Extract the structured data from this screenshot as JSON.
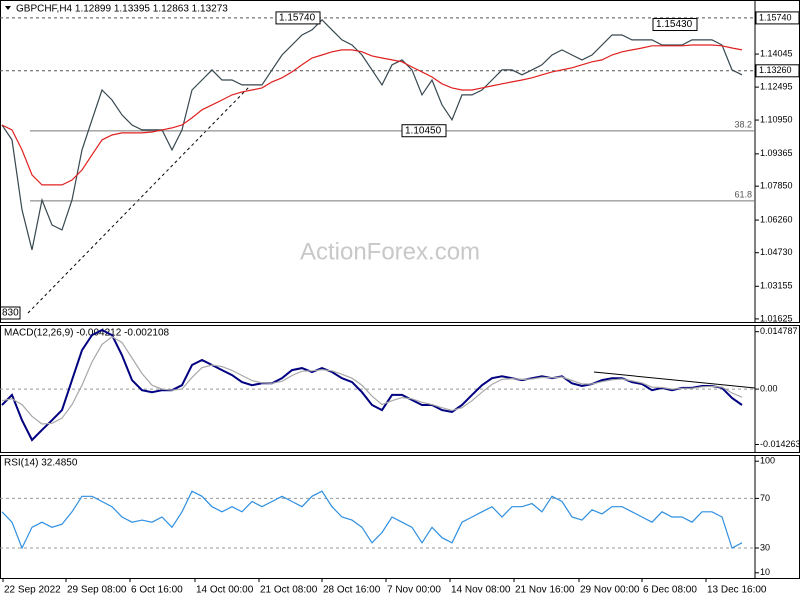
{
  "chart_data": [
    {
      "type": "line",
      "title": "GBPCHF,H4  1.12899 1.13395 1.12863 1.13273",
      "watermark": "ActionForex.com",
      "low_label": "830",
      "x": [
        0,
        1,
        2,
        3,
        4,
        5,
        6,
        7,
        8,
        9,
        10,
        11,
        12,
        13,
        14,
        15,
        16,
        17,
        18,
        19,
        20,
        21,
        22,
        23,
        24,
        25,
        26,
        27,
        28,
        29,
        30,
        31,
        32,
        33,
        34,
        35,
        36,
        37,
        38,
        39,
        40,
        41,
        42,
        43,
        44,
        45,
        46,
        47,
        48,
        49,
        50,
        51,
        52,
        53,
        54,
        55,
        56,
        57,
        58,
        59,
        60,
        61,
        62,
        63,
        64,
        65,
        66,
        67,
        68,
        69,
        70,
        71,
        72,
        73,
        74
      ],
      "xlim": [
        -0.2,
        75.3
      ],
      "ylim": [
        1.0148,
        1.1658
      ],
      "series": [
        {
          "color": "#37474f",
          "values": [
            1.1072,
            1.1002,
            1.0674,
            1.0486,
            1.072,
            1.0603,
            1.058,
            1.072,
            1.0955,
            1.1096,
            1.1236,
            1.1189,
            1.1119,
            1.1072,
            1.1049,
            1.1049,
            1.1049,
            1.0955,
            1.1049,
            1.1236,
            1.1283,
            1.133,
            1.1283,
            1.1283,
            1.126,
            1.126,
            1.126,
            1.133,
            1.14,
            1.1447,
            1.1494,
            1.1518,
            1.1565,
            1.1518,
            1.1471,
            1.1447,
            1.14,
            1.133,
            1.126,
            1.1354,
            1.1377,
            1.133,
            1.1213,
            1.1283,
            1.1166,
            1.1096,
            1.1213,
            1.1213,
            1.1236,
            1.1283,
            1.133,
            1.133,
            1.1307,
            1.133,
            1.1354,
            1.14,
            1.1424,
            1.14,
            1.1377,
            1.14,
            1.1447,
            1.1494,
            1.1494,
            1.1471,
            1.1471,
            1.1471,
            1.1447,
            1.1447,
            1.1447,
            1.1471,
            1.1471,
            1.1471,
            1.1447,
            1.133,
            1.1307
          ]
        },
        {
          "color": "#e02020",
          "values": [
            1.1072,
            1.1049,
            1.0955,
            1.0838,
            1.0791,
            1.0791,
            1.0791,
            1.0814,
            1.0861,
            1.0932,
            1.1002,
            1.1025,
            1.1035,
            1.1035,
            1.1035,
            1.1039,
            1.1049,
            1.1058,
            1.1072,
            1.1105,
            1.1143,
            1.1166,
            1.1189,
            1.1213,
            1.1227,
            1.1236,
            1.1246,
            1.1274,
            1.1293,
            1.1321,
            1.1354,
            1.1386,
            1.14,
            1.1415,
            1.1424,
            1.1424,
            1.1415,
            1.1396,
            1.1386,
            1.1377,
            1.1368,
            1.1344,
            1.1321,
            1.1297,
            1.1265,
            1.1246,
            1.1236,
            1.1236,
            1.1246,
            1.1255,
            1.1265,
            1.1274,
            1.1283,
            1.1293,
            1.1307,
            1.1321,
            1.133,
            1.134,
            1.1354,
            1.1368,
            1.1377,
            1.14,
            1.1415,
            1.1424,
            1.1433,
            1.1443,
            1.1443,
            1.1443,
            1.1443,
            1.1447,
            1.1447,
            1.1447,
            1.1443,
            1.1433,
            1.1424
          ]
        }
      ],
      "yticks": [
        1.14045,
        1.12495,
        {
          "value": 1.1095,
          "label": "1.10950"
        },
        1.09365,
        {
          "value": 1.0785,
          "label": "1.07850"
        },
        {
          "value": 1.0626,
          "label": "1.06260"
        },
        {
          "value": 1.0473,
          "label": "1.04730"
        },
        1.03155,
        1.01625
      ],
      "price_lines": [
        {
          "value": 1.1574,
          "label": "1.15740"
        },
        {
          "value": 1.1326,
          "label": "1.13260"
        }
      ],
      "fib_levels": [
        {
          "level": 38.2,
          "price": 1.1044
        },
        {
          "level": 61.8,
          "price": 1.0716
        }
      ],
      "annotations": [
        {
          "x": 27.6,
          "value": 1.1574,
          "label": "1.15740"
        },
        {
          "x": 65.3,
          "value": 1.1543,
          "label": "1.15430"
        },
        {
          "x": 40.2,
          "value": 1.1045,
          "label": "1.10450"
        }
      ]
    },
    {
      "type": "line",
      "title": "MACD(12,26,9) -0.004212 -0.002108",
      "x": [
        0,
        1,
        2,
        3,
        4,
        5,
        6,
        7,
        8,
        9,
        10,
        11,
        12,
        13,
        14,
        15,
        16,
        17,
        18,
        19,
        20,
        21,
        22,
        23,
        24,
        25,
        26,
        27,
        28,
        29,
        30,
        31,
        32,
        33,
        34,
        35,
        36,
        37,
        38,
        39,
        40,
        41,
        42,
        43,
        44,
        45,
        46,
        47,
        48,
        49,
        50,
        51,
        52,
        53,
        54,
        55,
        56,
        57,
        58,
        59,
        60,
        61,
        62,
        63,
        64,
        65,
        66,
        67,
        68,
        69,
        70,
        71,
        72,
        73,
        74
      ],
      "xlim": [
        -0.2,
        75.3
      ],
      "ylim": [
        -0.0162,
        0.0165
      ],
      "series": [
        {
          "color": "#000080",
          "values": [
            -0.0041,
            -0.0015,
            -0.008,
            -0.0131,
            -0.0105,
            -0.008,
            -0.0054,
            0.0023,
            0.01,
            0.0139,
            0.0152,
            0.0139,
            0.0087,
            0.0023,
            -0.0003,
            -0.0008,
            -0.0003,
            -0.0003,
            0.001,
            0.0062,
            0.0075,
            0.0062,
            0.0049,
            0.0036,
            0.0018,
            0.001,
            0.0015,
            0.0015,
            0.0028,
            0.0049,
            0.0054,
            0.0044,
            0.0054,
            0.0044,
            0.0028,
            0.0018,
            -0.0008,
            -0.0041,
            -0.0054,
            -0.0015,
            -0.0015,
            -0.0028,
            -0.0041,
            -0.0041,
            -0.0054,
            -0.0059,
            -0.0041,
            -0.0015,
            0.001,
            0.0028,
            0.0033,
            0.0028,
            0.0023,
            0.0028,
            0.0033,
            0.0028,
            0.0033,
            0.0015,
            0.0008,
            0.0013,
            0.0023,
            0.0028,
            0.0028,
            0.0018,
            0.0013,
            -0.0003,
            0.0003,
            -0.0003,
            0.0003,
            0.0003,
            0.0008,
            0.0008,
            0.0003,
            -0.0023,
            -0.0041
          ]
        },
        {
          "color": "#a8a8a8",
          "values": [
            -0.003,
            -0.0025,
            -0.004,
            -0.007,
            -0.009,
            -0.0088,
            -0.0075,
            -0.004,
            0.001,
            0.007,
            0.0115,
            0.0135,
            0.012,
            0.008,
            0.004,
            0.001,
            0.0,
            -0.0003,
            0.0,
            0.003,
            0.0055,
            0.0062,
            0.0058,
            0.0048,
            0.0035,
            0.0022,
            0.0016,
            0.0015,
            0.002,
            0.0035,
            0.0046,
            0.0047,
            0.005,
            0.0047,
            0.0038,
            0.0028,
            0.001,
            -0.0018,
            -0.004,
            -0.003,
            -0.0022,
            -0.0025,
            -0.0034,
            -0.004,
            -0.0048,
            -0.0055,
            -0.0048,
            -0.003,
            -0.0008,
            0.0012,
            0.0025,
            0.0027,
            0.0025,
            0.0026,
            0.003,
            0.0029,
            0.0031,
            0.0022,
            0.0013,
            0.0013,
            0.0019,
            0.0024,
            0.0026,
            0.0021,
            0.0016,
            0.0005,
            0.0004,
            0.0,
            0.0002,
            0.0002,
            0.0006,
            0.0007,
            0.0005,
            -0.001,
            -0.0021
          ]
        }
      ],
      "yticks": [
        0.014787,
        {
          "value": 0,
          "label": "0.00"
        },
        -0.014263
      ],
      "level_lines": [
        0
      ]
    },
    {
      "type": "line",
      "title": "RSI(14) 32.4850",
      "x": [
        0,
        1,
        2,
        3,
        4,
        5,
        6,
        7,
        8,
        9,
        10,
        11,
        12,
        13,
        14,
        15,
        16,
        17,
        18,
        19,
        20,
        21,
        22,
        23,
        24,
        25,
        26,
        27,
        28,
        29,
        30,
        31,
        32,
        33,
        34,
        35,
        36,
        37,
        38,
        39,
        40,
        41,
        42,
        43,
        44,
        45,
        46,
        47,
        48,
        49,
        50,
        51,
        52,
        53,
        54,
        55,
        56,
        57,
        58,
        59,
        60,
        61,
        62,
        63,
        64,
        65,
        66,
        67,
        68,
        69,
        70,
        71,
        72,
        73,
        74
      ],
      "xlim": [
        -0.2,
        75.3
      ],
      "ylim": [
        5.8,
        105
      ],
      "series": [
        {
          "color": "#2f8fe0",
          "values": [
            59.2,
            50.8,
            30,
            46.7,
            50.8,
            46.7,
            49.2,
            59.2,
            71.7,
            71.7,
            67.5,
            63.3,
            55,
            50.8,
            52.5,
            50.8,
            55,
            46.7,
            59.2,
            75.8,
            71.7,
            63.3,
            59.2,
            63.3,
            59.2,
            67.5,
            63.3,
            67.5,
            71.7,
            67.5,
            63.3,
            71.7,
            75.8,
            63.3,
            55,
            52.5,
            46.7,
            34.2,
            42.5,
            55,
            50.8,
            46.7,
            34.2,
            46.7,
            38.3,
            34.2,
            50.8,
            55,
            59.2,
            63.3,
            55,
            63.3,
            63.3,
            65.8,
            59.2,
            71.7,
            67.5,
            55,
            52.5,
            60.8,
            57.5,
            63.3,
            63.3,
            59.2,
            55,
            50.8,
            59.2,
            55,
            55,
            50.8,
            59.2,
            59.2,
            55,
            30,
            34.2
          ]
        }
      ],
      "yticks": [
        100,
        70,
        30,
        10
      ],
      "level_lines": [
        70,
        30
      ],
      "xticks": [
        {
          "value": 0.1,
          "label": "22 Sep 2022"
        },
        {
          "value": 6.4,
          "label": "29 Sep 08:00"
        },
        {
          "value": 12.8,
          "label": "6 Oct 16:00"
        },
        {
          "value": 19.3,
          "label": "14 Oct 00:00"
        },
        {
          "value": 25.7,
          "label": "21 Oct 08:00"
        },
        {
          "value": 32,
          "label": "28 Oct 16:00"
        },
        {
          "value": 38.4,
          "label": "7 Nov 00:00"
        },
        {
          "value": 44.8,
          "label": "14 Nov 08:00"
        },
        {
          "value": 51.2,
          "label": "21 Nov 16:00"
        },
        {
          "value": 57.7,
          "label": "29 Nov 00:00"
        },
        {
          "value": 64,
          "label": "6 Dec 08:00"
        },
        {
          "value": 70.4,
          "label": "13 Dec 16:00"
        }
      ]
    }
  ]
}
